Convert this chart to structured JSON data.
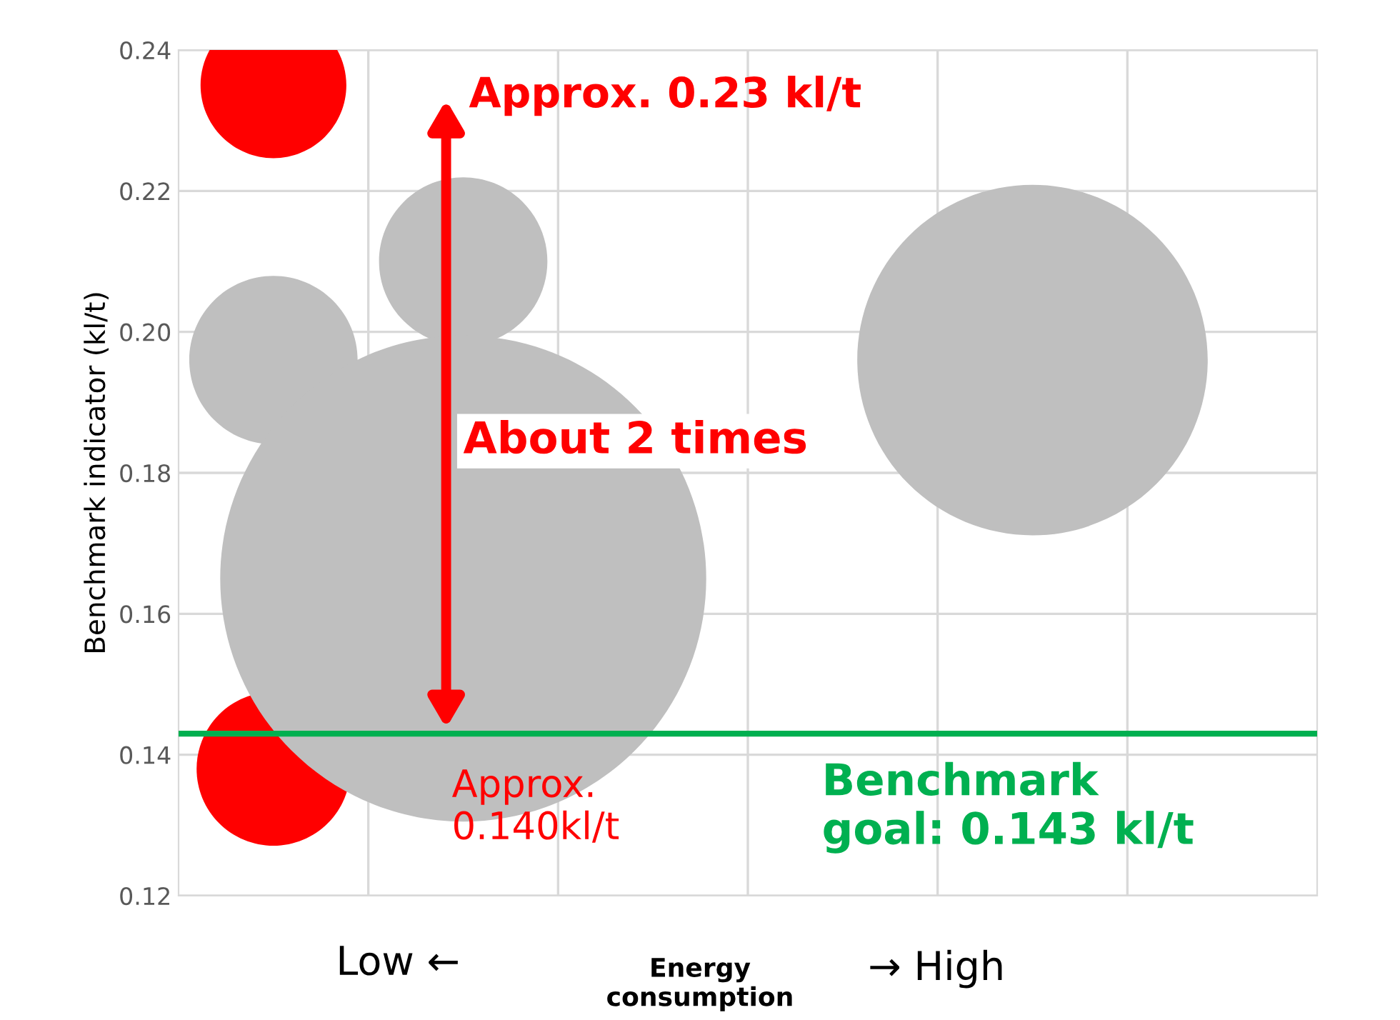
{
  "chart_data": {
    "type": "bubble",
    "ylabel": "Benchmark indicator (kl/t)",
    "xlabel": "Energy\nconsumption",
    "categories": [
      null,
      null,
      null,
      null,
      null,
      null
    ],
    "series": [
      {
        "color": "#ff0000",
        "values": [
          0.235,
          null,
          null,
          null,
          null,
          null
        ],
        "sizes": [
          0.09,
          null,
          null,
          null,
          null,
          null
        ]
      },
      {
        "color": "#ff0000",
        "values": [
          0.138,
          null,
          null,
          null,
          null,
          null
        ],
        "sizes": [
          0.1,
          null,
          null,
          null,
          null,
          null
        ]
      },
      {
        "color": "#bfbfbf",
        "values": [
          0.196,
          0.21,
          null,
          null,
          0.196,
          null
        ],
        "sizes": [
          0.12,
          0.12,
          null,
          null,
          0.52,
          null
        ]
      },
      {
        "color": "#bfbfbf",
        "values": [
          null,
          0.165,
          null,
          null,
          null,
          null
        ],
        "sizes": [
          null,
          1,
          null,
          null,
          null,
          null
        ]
      }
    ],
    "ylim": [
      0.12,
      0.24
    ],
    "yticks": [
      {
        "value": 0.12,
        "label": "0.12"
      },
      {
        "value": 0.14,
        "label": "0.14"
      },
      {
        "value": 0.16,
        "label": "0.16"
      },
      {
        "value": 0.18,
        "label": "0.18"
      },
      {
        "value": 0.2,
        "label": "0.20"
      },
      {
        "value": 0.22,
        "label": "0.22"
      },
      {
        "value": 0.24,
        "label": "0.24"
      }
    ],
    "grid": true,
    "ref_lines": [
      {
        "axis": "y",
        "value": 0.143,
        "label": "Benchmark\ngoal: 0.143 kl/t",
        "color": "#00b050"
      }
    ],
    "annotations": [
      "Approx. 0.23 kl/t",
      "About 2 times",
      "Approx.\n0.140kl/t",
      "Low ←",
      "→ High"
    ]
  }
}
